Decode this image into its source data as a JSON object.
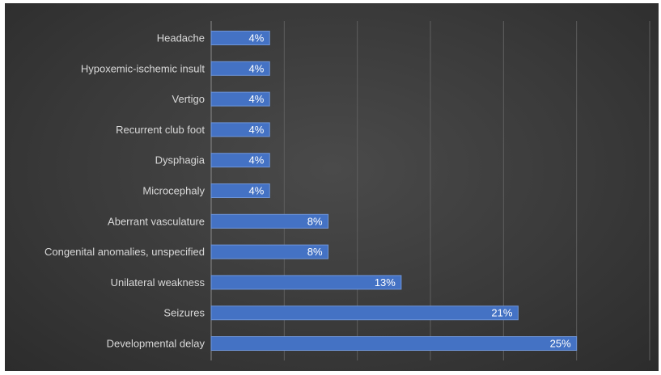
{
  "chart_data": {
    "type": "bar",
    "orientation": "horizontal",
    "title": "",
    "xlabel": "",
    "ylabel": "",
    "xlim": [
      0,
      30
    ],
    "grid": true,
    "legend": "none",
    "categories": [
      "Headache",
      "Hypoxemic-ischemic insult",
      "Vertigo",
      "Recurrent club foot",
      "Dysphagia",
      "Microcephaly",
      "Aberrant vasculature",
      "Congenital anomalies, unspecified",
      "Unilateral weakness",
      "Seizures",
      "Developmental delay"
    ],
    "values": [
      4,
      4,
      4,
      4,
      4,
      4,
      8,
      8,
      13,
      21,
      25
    ],
    "value_labels": [
      "4%",
      "4%",
      "4%",
      "4%",
      "4%",
      "4%",
      "8%",
      "8%",
      "13%",
      "21%",
      "25%"
    ],
    "colors": {
      "bar": "#4472c4",
      "bar_border": "#6f95d8",
      "background": "#3f3f3f",
      "text": "#d9d9d9"
    }
  }
}
